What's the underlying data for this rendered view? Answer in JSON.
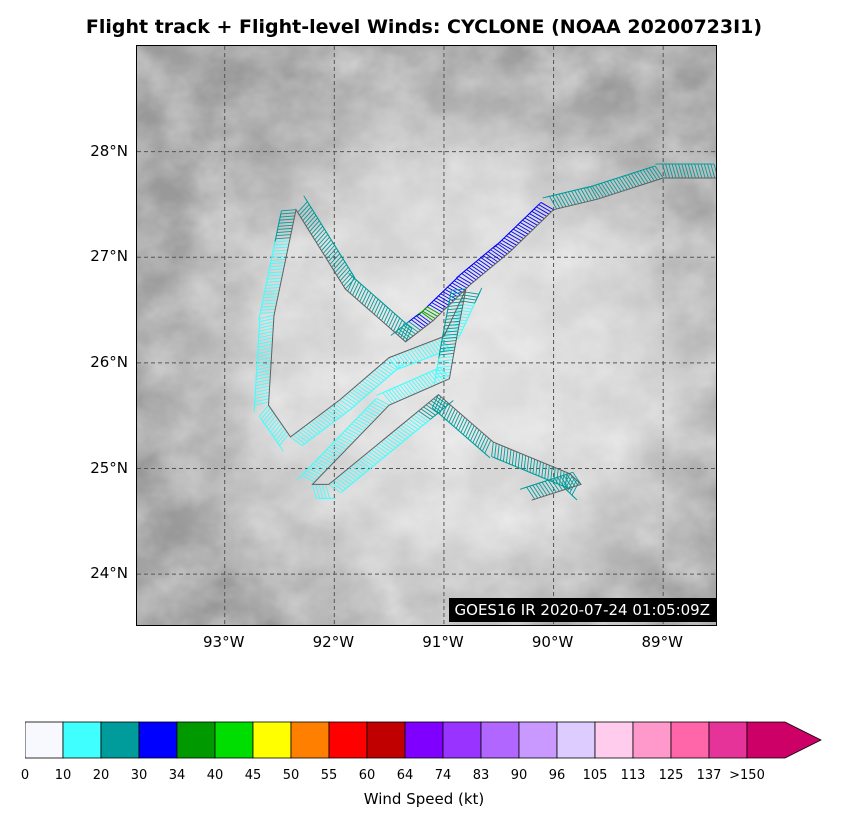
{
  "title": "Flight track + Flight-level Winds: CYCLONE (NOAA 20200723I1)",
  "satellite_label": "GOES16 IR 2020-07-24 01:05:09Z",
  "map": {
    "lat_range": [
      23.5,
      29.0
    ],
    "lon_range": [
      -93.8,
      -88.5
    ],
    "lat_ticks": [
      {
        "value": 24,
        "label": "24°N"
      },
      {
        "value": 25,
        "label": "25°N"
      },
      {
        "value": 26,
        "label": "26°N"
      },
      {
        "value": 27,
        "label": "27°N"
      },
      {
        "value": 28,
        "label": "28°N"
      }
    ],
    "lon_ticks": [
      {
        "value": -93,
        "label": "93°W"
      },
      {
        "value": -92,
        "label": "92°W"
      },
      {
        "value": -91,
        "label": "91°W"
      },
      {
        "value": -90,
        "label": "90°W"
      },
      {
        "value": -89,
        "label": "89°W"
      }
    ],
    "gridlines": "dashed",
    "track_color": "#606060",
    "flight_track": [
      {
        "lon": -88.5,
        "lat": 27.75,
        "wind": 22
      },
      {
        "lon": -89.0,
        "lat": 27.75,
        "wind": 22
      },
      {
        "lon": -89.6,
        "lat": 27.55,
        "wind": 22
      },
      {
        "lon": -90.0,
        "lat": 27.45,
        "wind": 30
      },
      {
        "lon": -90.4,
        "lat": 27.05,
        "wind": 31
      },
      {
        "lon": -90.75,
        "lat": 26.75,
        "wind": 30
      },
      {
        "lon": -91.1,
        "lat": 26.4,
        "wind": 35
      },
      {
        "lon": -91.35,
        "lat": 26.2,
        "wind": 22
      },
      {
        "lon": -91.9,
        "lat": 26.7,
        "wind": 22
      },
      {
        "lon": -92.35,
        "lat": 27.45,
        "wind": 22
      },
      {
        "lon": -92.55,
        "lat": 26.45,
        "wind": 15
      },
      {
        "lon": -92.6,
        "lat": 25.6,
        "wind": 15
      },
      {
        "lon": -92.4,
        "lat": 25.3,
        "wind": 15
      },
      {
        "lon": -91.95,
        "lat": 25.65,
        "wind": 15
      },
      {
        "lon": -91.5,
        "lat": 26.05,
        "wind": 15
      },
      {
        "lon": -91.0,
        "lat": 26.25,
        "wind": 15
      },
      {
        "lon": -90.8,
        "lat": 26.7,
        "wind": 22
      },
      {
        "lon": -90.9,
        "lat": 26.15,
        "wind": 22
      },
      {
        "lon": -90.95,
        "lat": 25.85,
        "wind": 12
      },
      {
        "lon": -91.5,
        "lat": 25.6,
        "wind": 12
      },
      {
        "lon": -92.2,
        "lat": 24.85,
        "wind": 12
      },
      {
        "lon": -92.05,
        "lat": 24.85,
        "wind": 12
      },
      {
        "lon": -91.05,
        "lat": 25.7,
        "wind": 22
      },
      {
        "lon": -90.55,
        "lat": 25.25,
        "wind": 22
      },
      {
        "lon": -89.85,
        "lat": 24.95,
        "wind": 22
      },
      {
        "lon": -89.75,
        "lat": 24.85,
        "wind": 22
      },
      {
        "lon": -90.2,
        "lat": 24.7,
        "wind": 22
      }
    ]
  },
  "colorbar": {
    "label": "Wind Speed (kt)",
    "extend": "max",
    "ticks": [
      "0",
      "10",
      "20",
      "30",
      "34",
      "40",
      "45",
      "50",
      "55",
      "60",
      "64",
      "74",
      "83",
      "90",
      "96",
      "105",
      "113",
      "125",
      "137",
      ">150"
    ],
    "bounds": [
      0,
      10,
      20,
      30,
      34,
      40,
      45,
      50,
      55,
      60,
      64,
      74,
      83,
      90,
      96,
      105,
      113,
      125,
      137,
      150
    ],
    "colors": [
      "#f8f8ff",
      "#40ffff",
      "#009b9b",
      "#0000ff",
      "#009900",
      "#00dd00",
      "#ffff00",
      "#ff8000",
      "#ff0000",
      "#c00000",
      "#8000ff",
      "#9933ff",
      "#b066ff",
      "#c999ff",
      "#dcccff",
      "#ffccee",
      "#ff99cc",
      "#ff66aa",
      "#e63399",
      "#cc0066"
    ]
  }
}
